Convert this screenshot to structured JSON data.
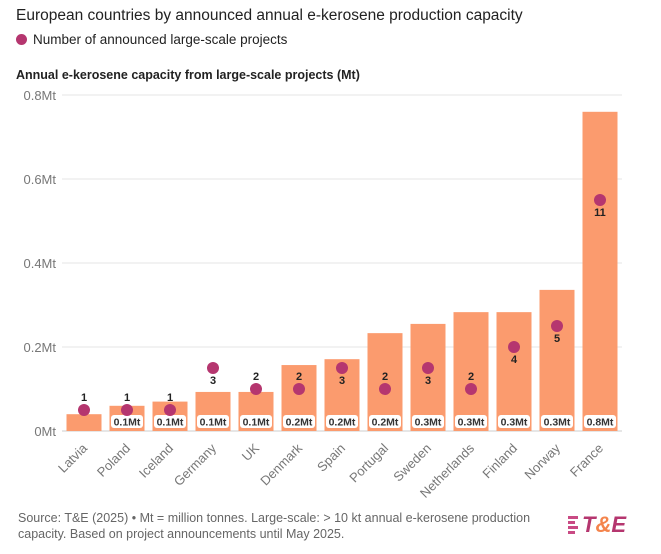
{
  "title": "European countries by announced annual e-kerosene production capacity",
  "legend": {
    "label": "Number of announced large-scale projects",
    "color": "#b5366f"
  },
  "source": "Source: T&E (2025) • Mt = million tonnes. Large-scale: > 10 kt annual e-kerosene production capacity. Based on project announcements until May 2025.",
  "logo": {
    "prefix": "T",
    "amp": "&",
    "suffix": "E"
  },
  "chart_data": {
    "type": "bar",
    "ylabel": "Annual e-kerosene capacity from large-scale projects (Mt)",
    "ylim": [
      0,
      0.8
    ],
    "yticks": [
      0,
      0.2,
      0.4,
      0.6,
      0.8
    ],
    "ytick_labels": [
      "0Mt",
      "0.2Mt",
      "0.4Mt",
      "0.6Mt",
      "0.8Mt"
    ],
    "grid": true,
    "bar_color": "#fb9b6e",
    "dot_color": "#b5366f",
    "dot_scale_mt_per_project": 0.05,
    "categories": [
      "Latvia",
      "Poland",
      "Iceland",
      "Germany",
      "UK",
      "Denmark",
      "Spain",
      "Portugal",
      "Sweden",
      "Netherlands",
      "Finland",
      "Norway",
      "France"
    ],
    "series": [
      {
        "name": "Annual e-kerosene capacity (Mt)",
        "values": [
          0.04,
          0.06,
          0.07,
          0.093,
          0.093,
          0.157,
          0.171,
          0.233,
          0.255,
          0.283,
          0.283,
          0.336,
          0.76
        ],
        "labels": [
          "",
          "0.1Mt",
          "0.1Mt",
          "0.1Mt",
          "0.1Mt",
          "0.2Mt",
          "0.2Mt",
          "0.2Mt",
          "0.3Mt",
          "0.3Mt",
          "0.3Mt",
          "0.3Mt",
          "0.8Mt"
        ]
      },
      {
        "name": "Number of announced large-scale projects",
        "values": [
          1,
          1,
          1,
          3,
          2,
          2,
          3,
          2,
          3,
          2,
          4,
          5,
          11
        ]
      }
    ]
  }
}
